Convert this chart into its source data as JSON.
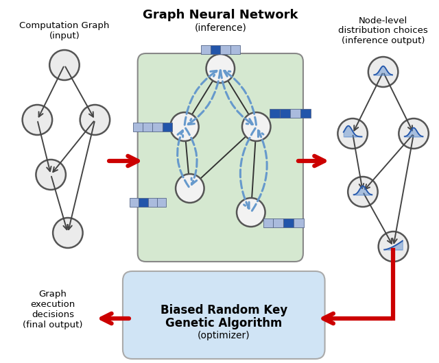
{
  "title": "Graph Neural Network",
  "subtitle": "(inference)",
  "box_gnn_color": "#d5e8d0",
  "box_gnn_border": "#888888",
  "box_brk_color": "#d0e4f5",
  "box_brk_border": "#aaaaaa",
  "node_fc": "#ebebeb",
  "node_ec": "#555555",
  "red_color": "#cc0000",
  "blue_dash": "#6699cc",
  "background": "#ffffff",
  "comp_graph_label": "Computation Graph\n(input)",
  "node_dist_label": "Node-level\ndistribution choices\n(inference output)",
  "brk_label1": "Biased Random Key",
  "brk_label2": "Genetic Algorithm",
  "brk_label3": "(optimizer)",
  "exec_label": "Graph\nexecution\ndecisions\n(final output)",
  "gnn_title": "Graph Neural Network",
  "gnn_sub": "(inference)"
}
